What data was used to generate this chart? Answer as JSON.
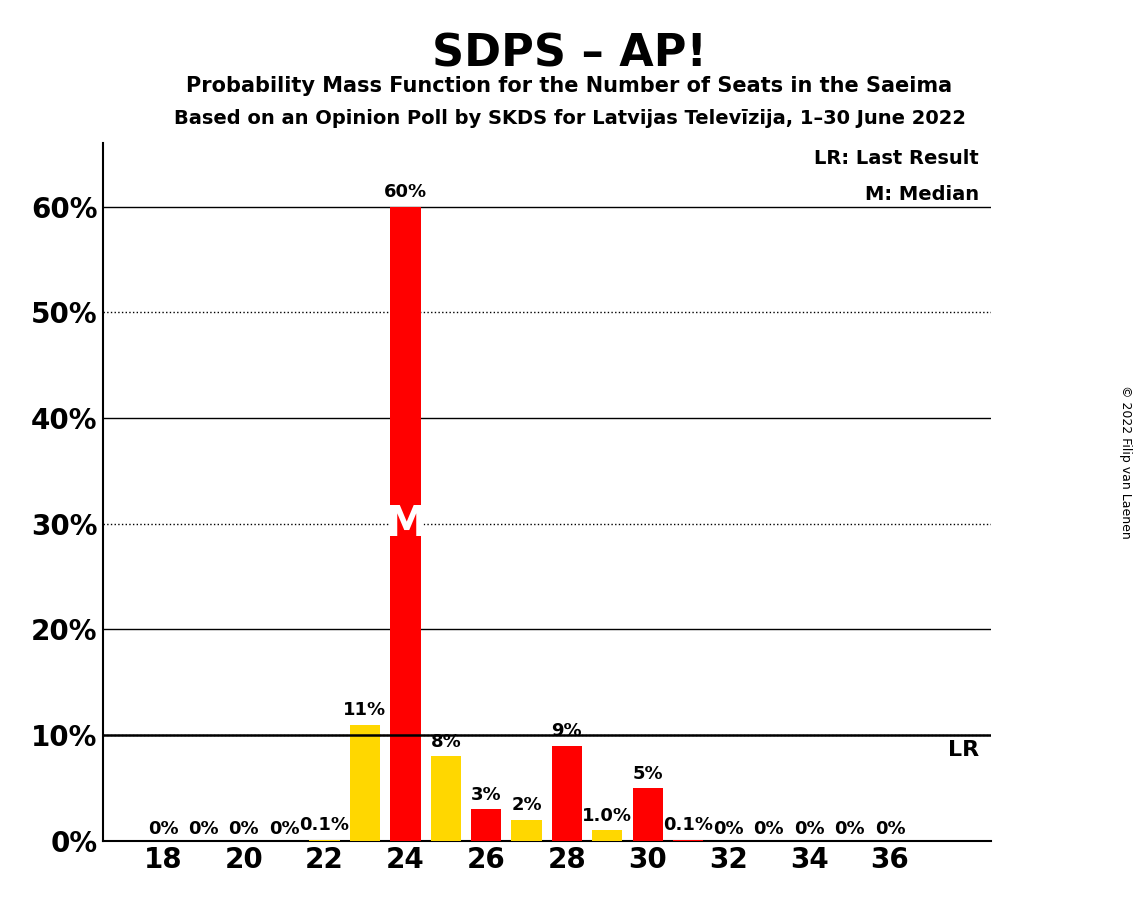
{
  "title": "SDPS – AP!",
  "subtitle1": "Probability Mass Function for the Number of Seats in the Saeima",
  "subtitle2": "Based on an Opinion Poll by SKDS for Latvijas Televīzija, 1–30 June 2022",
  "copyright": "© 2022 Filip van Laenen",
  "seats": [
    18,
    19,
    20,
    21,
    22,
    23,
    24,
    25,
    26,
    27,
    28,
    29,
    30,
    31,
    32,
    33,
    34,
    35,
    36
  ],
  "values": [
    0.0,
    0.0,
    0.0,
    0.0,
    0.1,
    11.0,
    60.0,
    8.0,
    3.0,
    2.0,
    9.0,
    1.0,
    5.0,
    0.1,
    0.0,
    0.0,
    0.0,
    0.0,
    0.0
  ],
  "colors": [
    "#FFD700",
    "#FFD700",
    "#FFD700",
    "#FFD700",
    "#FFD700",
    "#FFD700",
    "#FF0000",
    "#FFD700",
    "#FF0000",
    "#FFD700",
    "#FF0000",
    "#FFD700",
    "#FF0000",
    "#FF0000",
    "#FFD700",
    "#FFD700",
    "#FFD700",
    "#FFD700",
    "#FFD700"
  ],
  "bar_labels": [
    "0%",
    "0%",
    "0%",
    "0%",
    "0.1%",
    "11%",
    "60%",
    "8%",
    "3%",
    "2%",
    "9%",
    "1.0%",
    "5%",
    "0.1%",
    "0%",
    "0%",
    "0%",
    "0%",
    "0%"
  ],
  "median_seat": 24,
  "lr_value": 10.0,
  "background_color": "#FFFFFF",
  "bar_color_red": "#FF0000",
  "bar_color_yellow": "#FFD700",
  "ylim": [
    0,
    66
  ],
  "yticks": [
    0,
    10,
    20,
    30,
    40,
    50,
    60
  ],
  "ytick_labels": [
    "0%",
    "10%",
    "20%",
    "30%",
    "40%",
    "50%",
    "60%"
  ],
  "xticks": [
    18,
    20,
    22,
    24,
    26,
    28,
    30,
    32,
    34,
    36
  ],
  "xlim": [
    16.5,
    38.5
  ],
  "dotted_grid": [
    10,
    30,
    50
  ],
  "solid_grid": [
    20,
    40,
    60
  ],
  "legend_lr": "LR: Last Result",
  "legend_m": "M: Median",
  "lr_label": "LR"
}
